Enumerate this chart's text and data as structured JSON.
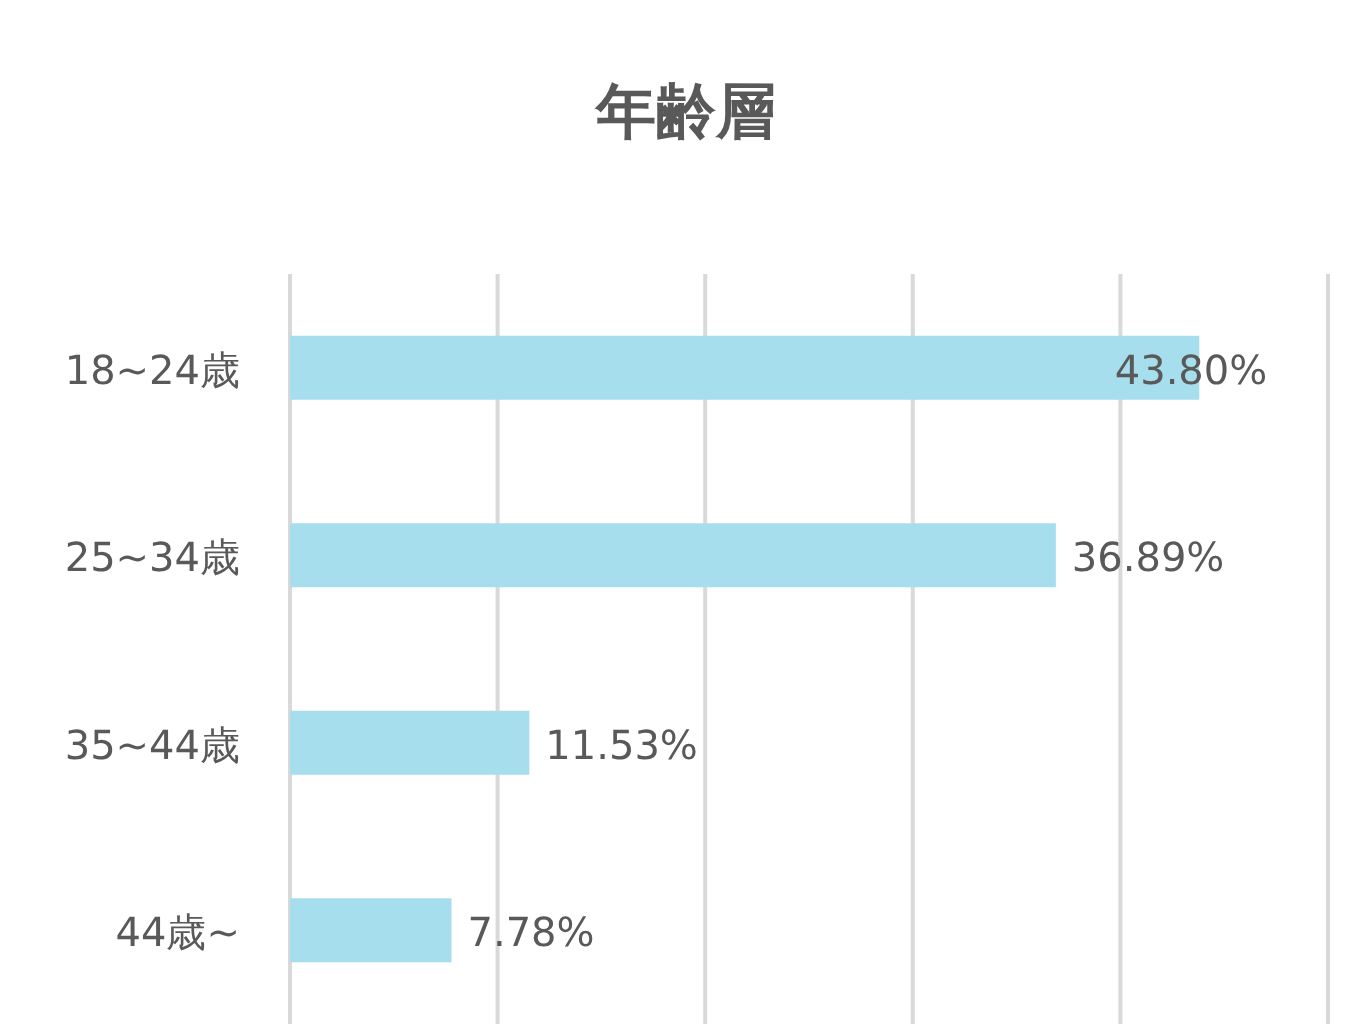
{
  "chart_data": {
    "type": "bar",
    "orientation": "horizontal",
    "title": "年齢層",
    "categories": [
      "18~24歳",
      "25~34歳",
      "35~44歳",
      "44歳~"
    ],
    "values": [
      43.8,
      36.89,
      11.53,
      7.78
    ],
    "value_labels": [
      "43.80%",
      "36.89%",
      "11.53%",
      "7.78%"
    ],
    "color": "#a6deed",
    "xlim": [
      0,
      50
    ],
    "xticks": [
      {
        "value": 0,
        "label": null
      },
      {
        "value": 10,
        "label": null
      },
      {
        "value": 20,
        "label": null
      },
      {
        "value": 30,
        "label": null
      },
      {
        "value": 40,
        "label": null
      },
      {
        "value": 50,
        "label": null
      }
    ],
    "grid": "x",
    "tick_labels": "y"
  }
}
